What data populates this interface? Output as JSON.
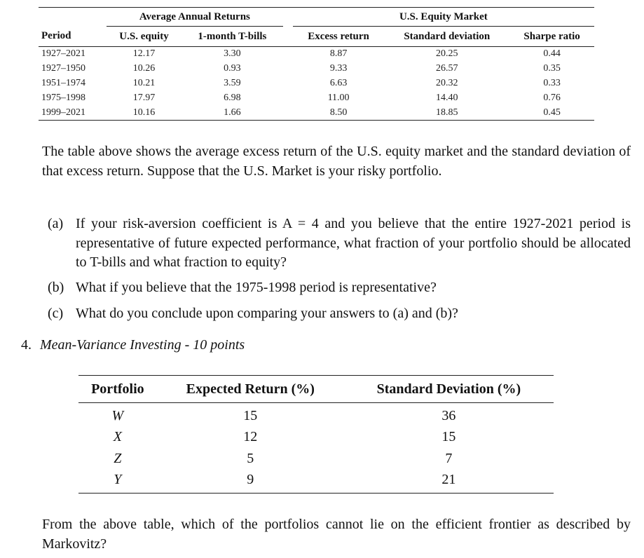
{
  "returns_table": {
    "group_headers": {
      "left": "Average Annual Returns",
      "right": "U.S. Equity Market"
    },
    "columns": [
      "Period",
      "U.S. equity",
      "1-month T-bills",
      "Excess return",
      "Standard deviation",
      "Sharpe ratio"
    ],
    "rows": [
      [
        "1927–2021",
        "12.17",
        "3.30",
        "8.87",
        "20.25",
        "0.44"
      ],
      [
        "1927–1950",
        "10.26",
        "0.93",
        "9.33",
        "26.57",
        "0.35"
      ],
      [
        "1951–1974",
        "10.21",
        "3.59",
        "6.63",
        "20.32",
        "0.33"
      ],
      [
        "1975–1998",
        "17.97",
        "6.98",
        "11.00",
        "14.40",
        "0.76"
      ],
      [
        "1999–2021",
        "10.16",
        "1.66",
        "8.50",
        "18.85",
        "0.45"
      ]
    ]
  },
  "intro_paragraph": "The table above shows the average excess return of the U.S. equity market and the standard deviation of that excess return. Suppose that the U.S. Market is your risky portfolio.",
  "parts": [
    {
      "label": "(a)",
      "text": "If your risk-aversion coefficient is A = 4 and you believe that the entire 1927-2021 period is representative of future expected performance, what fraction of your portfolio should be allocated to T-bills and what fraction to equity?"
    },
    {
      "label": "(b)",
      "text": "What if you believe that the 1975-1998 period is representative?"
    },
    {
      "label": "(c)",
      "text": "What do you conclude upon comparing your answers to (a) and (b)?"
    }
  ],
  "section4": {
    "number": "4.",
    "title": "Mean-Variance Investing - 10 points"
  },
  "portfolio_table": {
    "columns": [
      "Portfolio",
      "Expected Return (%)",
      "Standard Deviation (%)"
    ],
    "rows": [
      [
        "W",
        "15",
        "36"
      ],
      [
        "X",
        "12",
        "15"
      ],
      [
        "Z",
        "5",
        "7"
      ],
      [
        "Y",
        "9",
        "21"
      ]
    ]
  },
  "closing_question": "From the above table, which of the portfolios cannot lie on the efficient frontier as described by Markovitz?"
}
